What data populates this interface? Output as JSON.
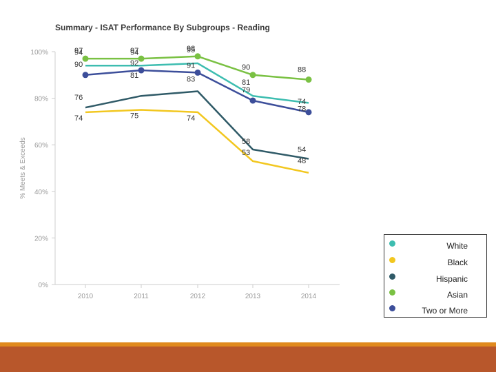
{
  "chart_data": {
    "type": "line",
    "title": "Summary - ISAT Performance By Subgroups - Reading",
    "xlabel": "",
    "ylabel": "% Meets & Exceeds",
    "categories": [
      "2010",
      "2011",
      "2012",
      "2013",
      "2014"
    ],
    "ylim": [
      0,
      100
    ],
    "yticks": [
      "0%",
      "20%",
      "40%",
      "60%",
      "80%",
      "100%"
    ],
    "grid": false,
    "legend_position": "bottom-right",
    "series": [
      {
        "name": "White",
        "color": "#3dbdb0",
        "markers": false,
        "values": [
          94,
          94,
          95,
          81,
          78
        ]
      },
      {
        "name": "Black",
        "color": "#f2c71f",
        "markers": false,
        "values": [
          74,
          75,
          74,
          53,
          48
        ]
      },
      {
        "name": "Hispanic",
        "color": "#2f5a67",
        "markers": false,
        "values": [
          76,
          81,
          83,
          58,
          54
        ]
      },
      {
        "name": "Asian",
        "color": "#7ac143",
        "markers": true,
        "values": [
          97,
          97,
          98,
          90,
          88
        ]
      },
      {
        "name": "Two or More",
        "color": "#3c4e9a",
        "markers": true,
        "values": [
          90,
          92,
          91,
          79,
          74
        ]
      }
    ]
  },
  "legend": {
    "items": [
      {
        "label": "White",
        "color": "#3dbdb0"
      },
      {
        "label": "Black",
        "color": "#f2c71f"
      },
      {
        "label": "Hispanic",
        "color": "#2f5a67"
      },
      {
        "label": "Asian",
        "color": "#7ac143"
      },
      {
        "label": "Two or More",
        "color": "#3c4e9a"
      }
    ]
  },
  "theme": {
    "footer_orange": "#e08a1e",
    "footer_brown": "#b8572b"
  }
}
